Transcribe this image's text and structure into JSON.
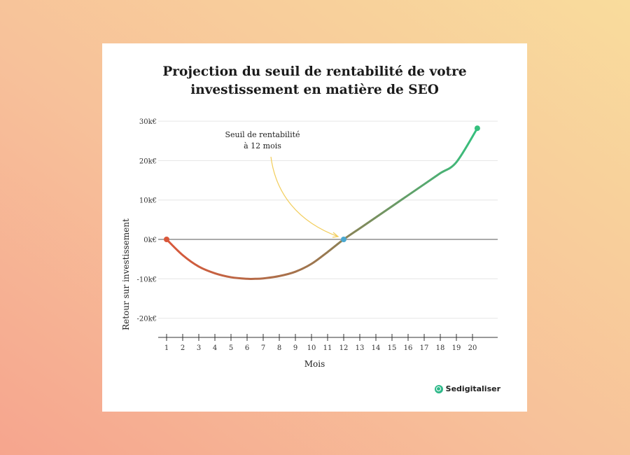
{
  "chart_data": {
    "type": "line",
    "title_line1": "Projection du seuil de rentabilité de votre",
    "title_line2": "investissement en matière de SEO",
    "xlabel": "Mois",
    "ylabel": "Retour sur investissement",
    "x_ticks": [
      "1",
      "2",
      "3",
      "4",
      "5",
      "6",
      "7",
      "8",
      "9",
      "10",
      "11",
      "12",
      "13",
      "14",
      "15",
      "16",
      "17",
      "18",
      "19",
      "20"
    ],
    "y_ticks": [
      {
        "value": 30000,
        "label": "30k€"
      },
      {
        "value": 20000,
        "label": "20k€"
      },
      {
        "value": 10000,
        "label": "10k€"
      },
      {
        "value": 0,
        "label": "0k€"
      },
      {
        "value": -10000,
        "label": "-10k€"
      },
      {
        "value": -20000,
        "label": "-20k€"
      }
    ],
    "ylim": [
      -25000,
      32000
    ],
    "xlim": [
      0.5,
      20.5
    ],
    "series": [
      {
        "x": [
          1,
          2,
          3,
          4,
          5,
          6,
          6.5,
          7,
          8,
          9,
          10,
          11,
          12,
          13,
          14,
          15,
          16,
          17,
          18,
          19,
          20.3
        ],
        "y": [
          0,
          -4000,
          -6900,
          -8600,
          -9600,
          -10000,
          -10000,
          -9900,
          -9300,
          -8200,
          -6200,
          -3200,
          0,
          2800,
          5600,
          8400,
          11200,
          14000,
          16800,
          19600,
          28200
        ]
      }
    ],
    "colors": {
      "start": "#d9573a",
      "middle": "#9a7850",
      "end": "#35c07e",
      "breakeven_point": "#4aa8d0"
    },
    "annotation": {
      "line1": "Seuil de rentabilité",
      "line2": "à 12 mois",
      "target_x": 12,
      "target_y": 0,
      "arrow_color": "#f2cd5a"
    },
    "grid": true
  },
  "brand": {
    "name": "Sedigitaliser",
    "icon": "brand-logo-icon"
  }
}
